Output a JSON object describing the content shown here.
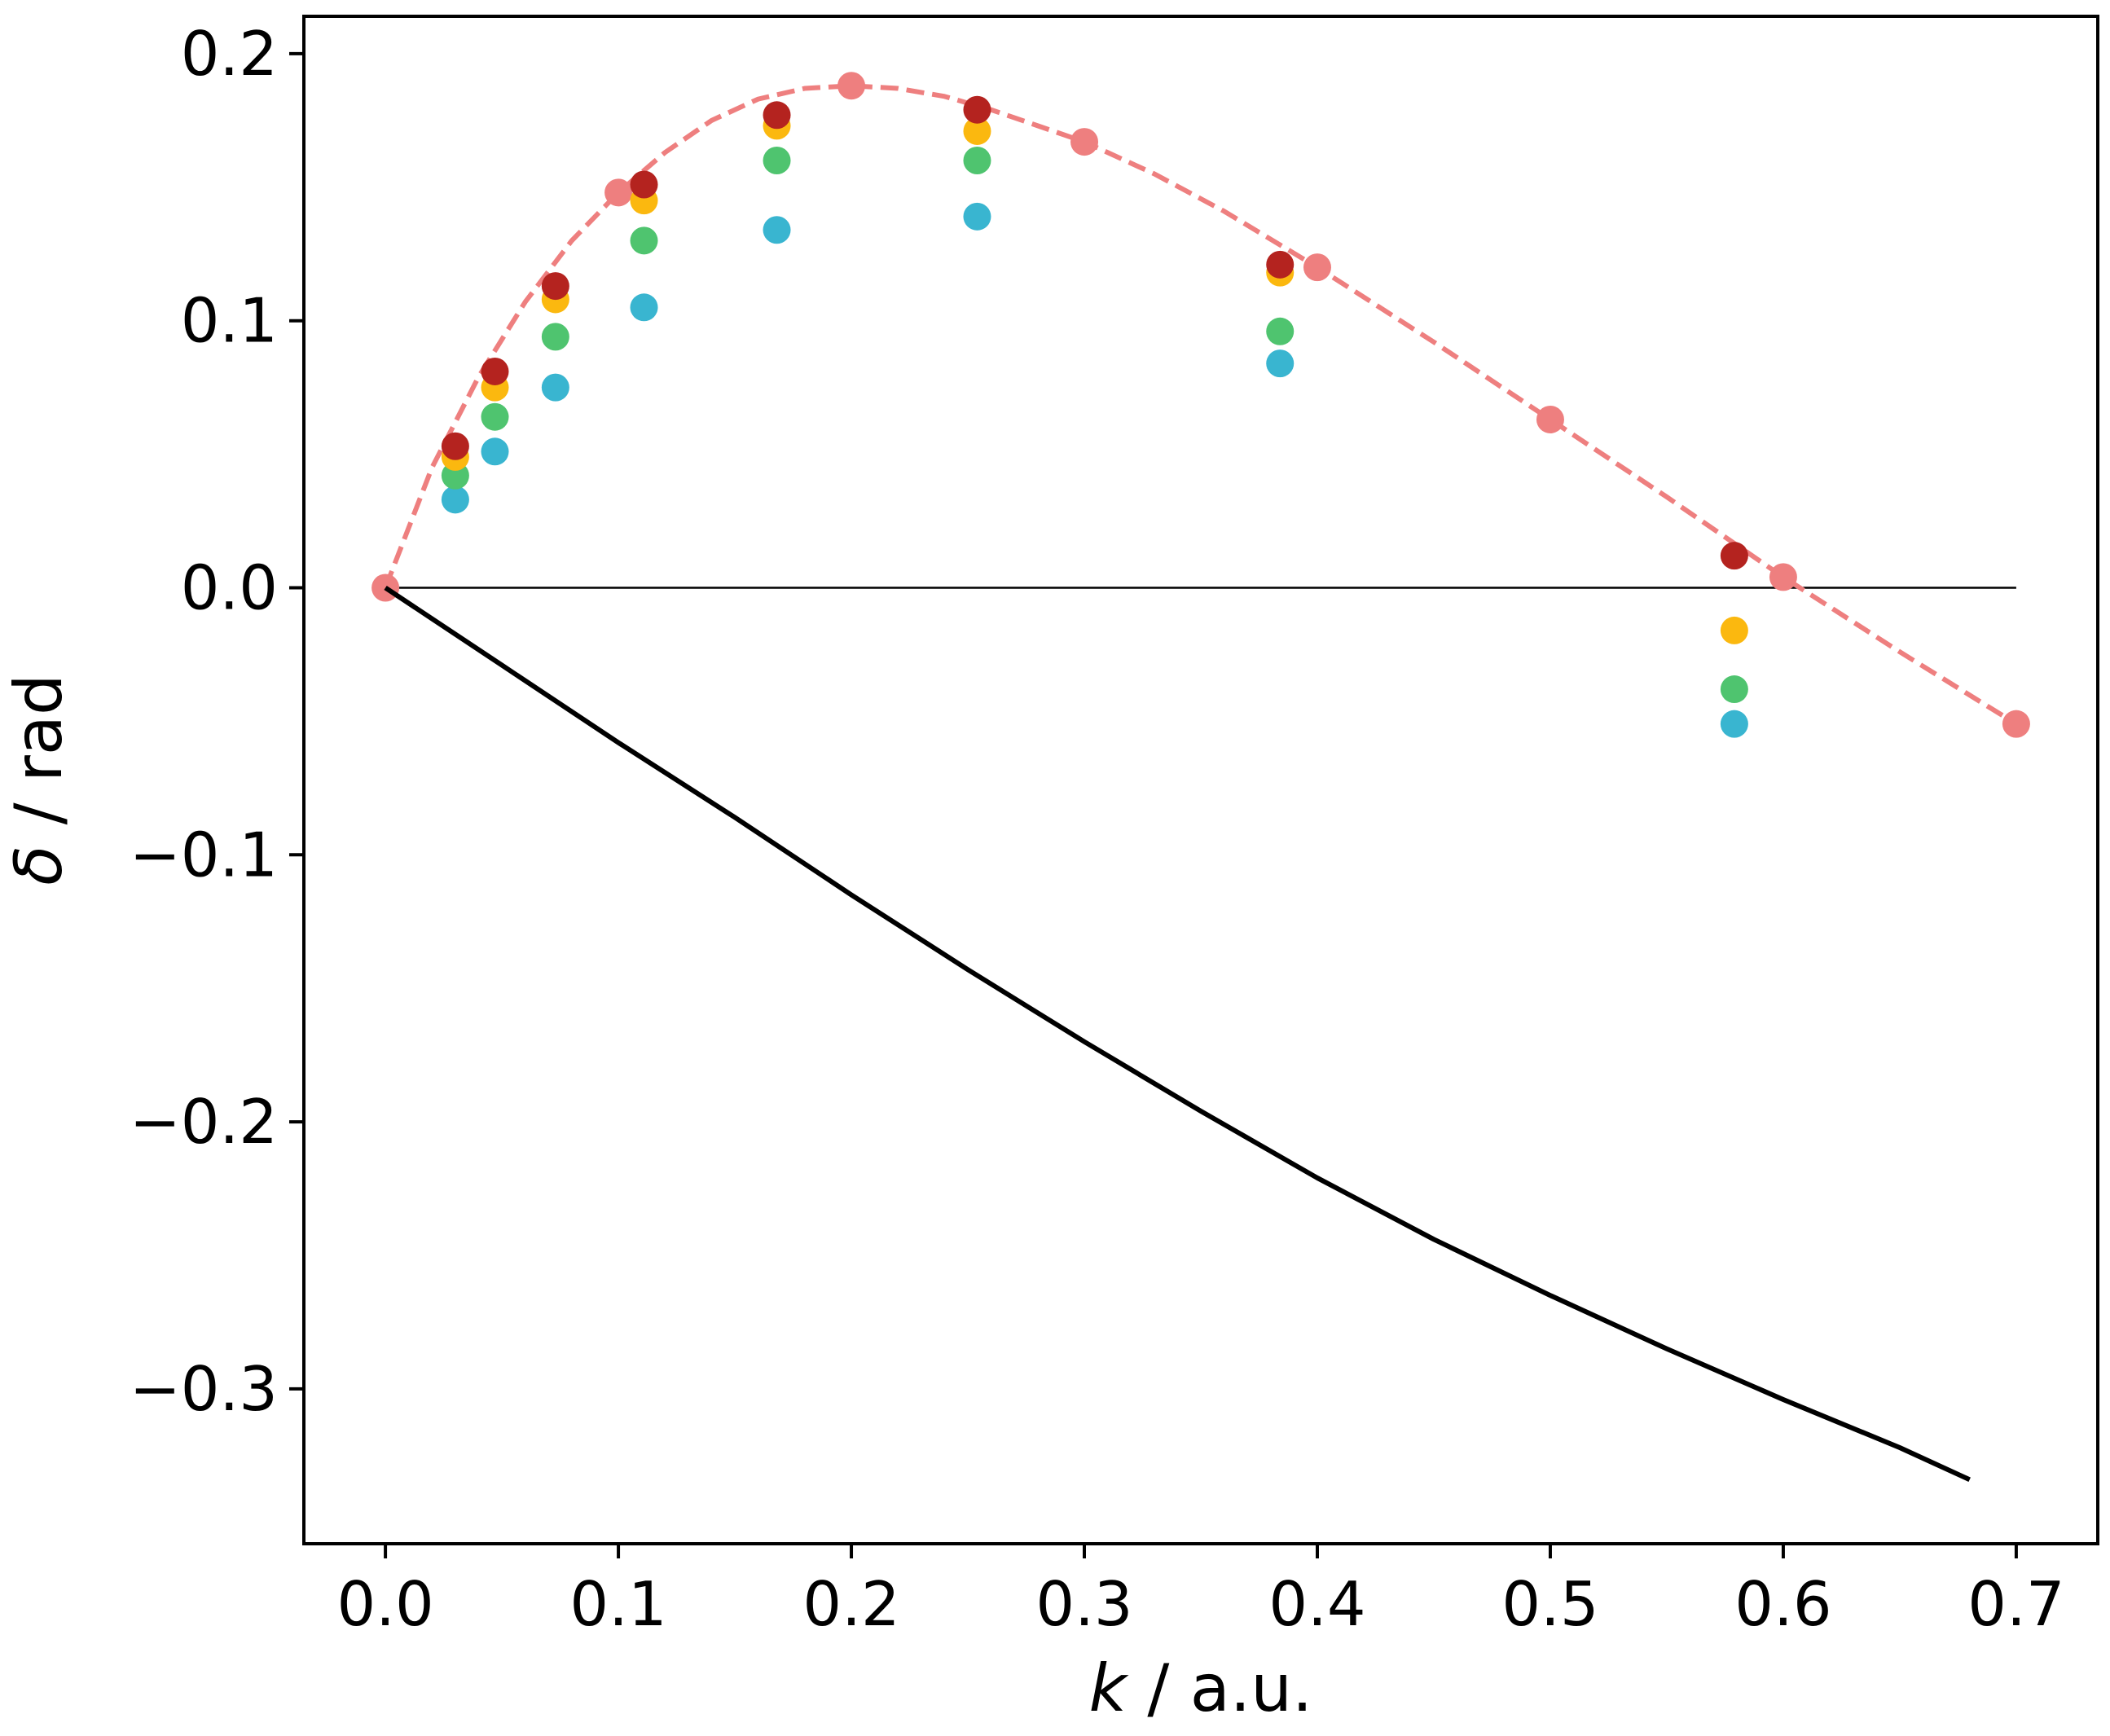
{
  "chart_data": {
    "type": "scatter",
    "xlabel_var": "k",
    "xlabel_unit": " / a.u.",
    "ylabel_var": "δ",
    "ylabel_unit": " / rad",
    "xlim": [
      -0.035,
      0.735
    ],
    "ylim": [
      -0.358,
      0.214
    ],
    "xticks": [
      0.0,
      0.1,
      0.2,
      0.3,
      0.4,
      0.5,
      0.6,
      0.7
    ],
    "xtick_labels": [
      "0.0",
      "0.1",
      "0.2",
      "0.3",
      "0.4",
      "0.5",
      "0.6",
      "0.7"
    ],
    "yticks": [
      0.2,
      0.1,
      0.0,
      -0.1,
      -0.2,
      -0.3
    ],
    "ytick_labels": [
      "0.2",
      "0.1",
      "0.0",
      "−0.1",
      "−0.2",
      "−0.3"
    ],
    "grid": false,
    "legend": "none",
    "reference_line": {
      "y": 0.0,
      "x_range": [
        0.0,
        0.7
      ],
      "color": "#000000"
    },
    "series": [
      {
        "style": "dashed-line-with-markers",
        "color": "#ee7f7f",
        "marker_points": {
          "x": [
            0.0,
            0.1,
            0.2,
            0.3,
            0.4,
            0.5,
            0.6,
            0.7
          ],
          "y": [
            0.0,
            0.148,
            0.188,
            0.167,
            0.12,
            0.063,
            0.004,
            -0.051
          ]
        },
        "curve": {
          "x": [
            0.0,
            0.02,
            0.04,
            0.06,
            0.08,
            0.1,
            0.12,
            0.14,
            0.16,
            0.18,
            0.2,
            0.22,
            0.24,
            0.26,
            0.28,
            0.3,
            0.33,
            0.36,
            0.4,
            0.45,
            0.5,
            0.55,
            0.6,
            0.65,
            0.7
          ],
          "y": [
            0.0,
            0.045,
            0.079,
            0.107,
            0.13,
            0.148,
            0.163,
            0.175,
            0.183,
            0.187,
            0.188,
            0.187,
            0.184,
            0.179,
            0.173,
            0.167,
            0.155,
            0.141,
            0.12,
            0.092,
            0.063,
            0.034,
            0.004,
            -0.024,
            -0.051
          ]
        }
      },
      {
        "style": "markers",
        "color": "#39b5d0",
        "x": [
          0.03,
          0.047,
          0.073,
          0.111,
          0.168,
          0.254,
          0.384,
          0.579
        ],
        "y": [
          0.033,
          0.051,
          0.075,
          0.105,
          0.134,
          0.139,
          0.084,
          -0.051
        ]
      },
      {
        "style": "markers",
        "color": "#4fc46f",
        "x": [
          0.03,
          0.047,
          0.073,
          0.111,
          0.168,
          0.254,
          0.384,
          0.579
        ],
        "y": [
          0.042,
          0.064,
          0.094,
          0.13,
          0.16,
          0.16,
          0.096,
          -0.038
        ]
      },
      {
        "style": "markers",
        "color": "#fbb80f",
        "x": [
          0.03,
          0.047,
          0.073,
          0.111,
          0.168,
          0.254,
          0.384,
          0.579
        ],
        "y": [
          0.049,
          0.075,
          0.108,
          0.145,
          0.173,
          0.171,
          0.118,
          -0.016
        ]
      },
      {
        "style": "markers",
        "color": "#b4231f",
        "x": [
          0.03,
          0.047,
          0.073,
          0.111,
          0.168,
          0.254,
          0.384,
          0.579
        ],
        "y": [
          0.053,
          0.081,
          0.113,
          0.151,
          0.177,
          0.179,
          0.121,
          0.012
        ]
      },
      {
        "style": "solid-line",
        "color": "#000000",
        "x": [
          0.0,
          0.05,
          0.1,
          0.15,
          0.2,
          0.25,
          0.3,
          0.35,
          0.4,
          0.45,
          0.5,
          0.55,
          0.6,
          0.65,
          0.68
        ],
        "y": [
          0.0,
          -0.029,
          -0.058,
          -0.086,
          -0.115,
          -0.143,
          -0.17,
          -0.196,
          -0.221,
          -0.244,
          -0.265,
          -0.285,
          -0.304,
          -0.322,
          -0.334
        ]
      }
    ]
  }
}
